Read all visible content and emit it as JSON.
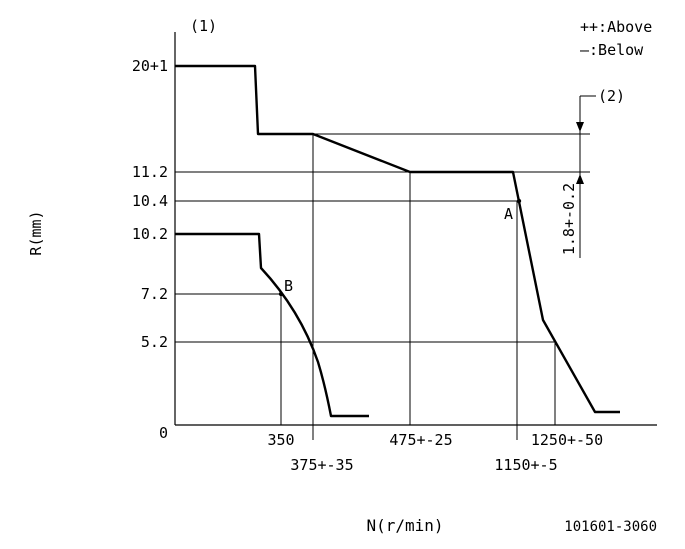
{
  "chart_data": {
    "type": "line",
    "title": "",
    "xlabel": "N(r/min)",
    "ylabel": "R(mm)",
    "y_ticks": [
      "0",
      "5.2",
      "7.2",
      "10.2",
      "10.4",
      "11.2",
      "20+1"
    ],
    "x_ticks_upper": [
      "350",
      "475+-25",
      "1250+-50"
    ],
    "x_ticks_lower": [
      "375+-35",
      "1150+-5"
    ],
    "legend": [
      "++:Above",
      "—:Below"
    ],
    "annotations": {
      "label_1": "(1)",
      "label_2": "(2)",
      "dimension": "1.8+-0.2",
      "point_A": "A",
      "point_B": "B"
    },
    "drawing_number": "101601-3060",
    "series": [
      {
        "name": "",
        "x": [
          0,
          300,
          320,
          375,
          475,
          1150,
          1230,
          1300
        ],
        "y": [
          20,
          20,
          12.6,
          12.6,
          11.2,
          11.2,
          9.6,
          2.3
        ]
      },
      {
        "name": "",
        "x": [
          0,
          320,
          330,
          380,
          420,
          450,
          490
        ],
        "y": [
          10.2,
          10.2,
          8.5,
          6.2,
          3.8,
          1.5,
          1.5
        ]
      }
    ]
  }
}
